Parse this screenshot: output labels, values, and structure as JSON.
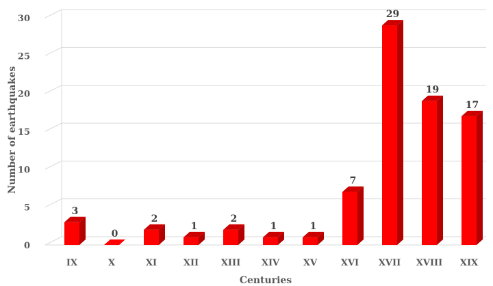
{
  "chart_data": {
    "type": "bar",
    "title": "",
    "xlabel": "Centuries",
    "ylabel": "Number of earthquakes",
    "categories": [
      "IX",
      "X",
      "XI",
      "XII",
      "XIII",
      "XIV",
      "XV",
      "XVI",
      "XVII",
      "XVIII",
      "XIX"
    ],
    "values": [
      3,
      0,
      2,
      1,
      2,
      1,
      1,
      7,
      29,
      19,
      17
    ],
    "ylim": [
      0,
      30
    ],
    "yticks": [
      0,
      5,
      10,
      15,
      20,
      25,
      30
    ],
    "grid": true,
    "legend": "none",
    "style": "3d-column",
    "colors": {
      "bar_front": "#ff0000",
      "bar_side": "#b30000",
      "bar_top": "#cc0000",
      "gridline": "#d9d9d9"
    }
  }
}
